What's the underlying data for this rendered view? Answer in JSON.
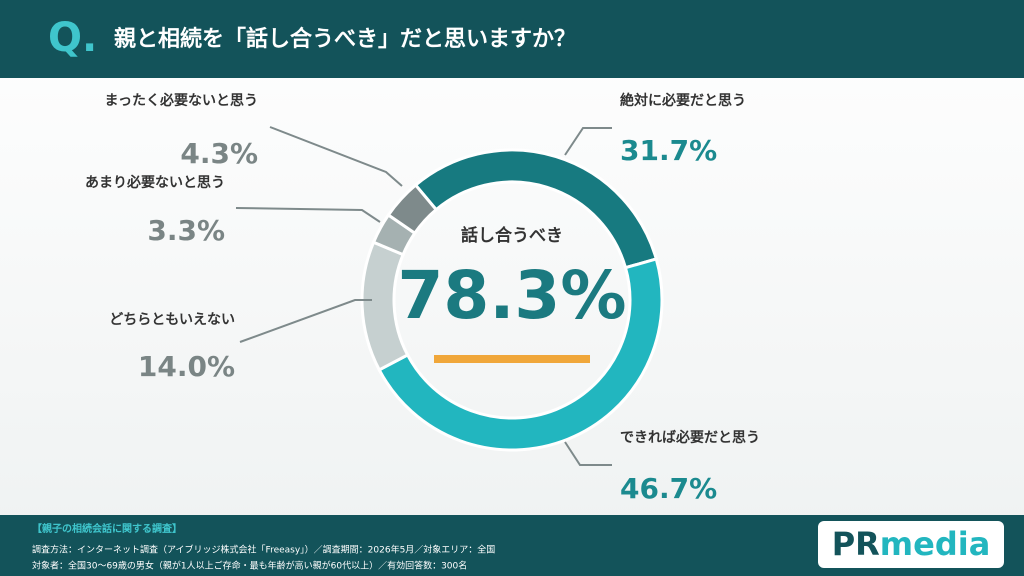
{
  "header": {
    "q": "Q.",
    "title": "親と相続を「話し合うべき」だと思いますか？"
  },
  "chart_data": {
    "type": "donut",
    "categories": [
      "絶対に必要だと思う",
      "できれば必要だと思う",
      "どちらともいえない",
      "あまり必要ないと思う",
      "まったく必要ないと思う"
    ],
    "values": [
      31.7,
      46.7,
      14.0,
      3.3,
      4.3
    ],
    "value_labels": [
      "31.7%",
      "46.7%",
      "14.0%",
      "3.3%",
      "4.3%"
    ],
    "colors": [
      "#177a80",
      "#22b6bf",
      "#c6d0d0",
      "#a5b1b1",
      "#7e8a8b"
    ],
    "center_label": "話し合うべき",
    "center_value_label": "78.3%"
  },
  "footer": {
    "heading": "【親子の相続会話に関する調査】",
    "lines": [
      "調査方法：インターネット調査（アイブリッジ株式会社「Freeasy」）／調査期間：2026年5月／対象エリア：全国",
      "対象者：全国30〜69歳の男女（親が1人以上ご存命・最も年齢が高い親が60代以上）／有効回答数：300名"
    ],
    "logo": [
      "PR",
      "media"
    ]
  }
}
